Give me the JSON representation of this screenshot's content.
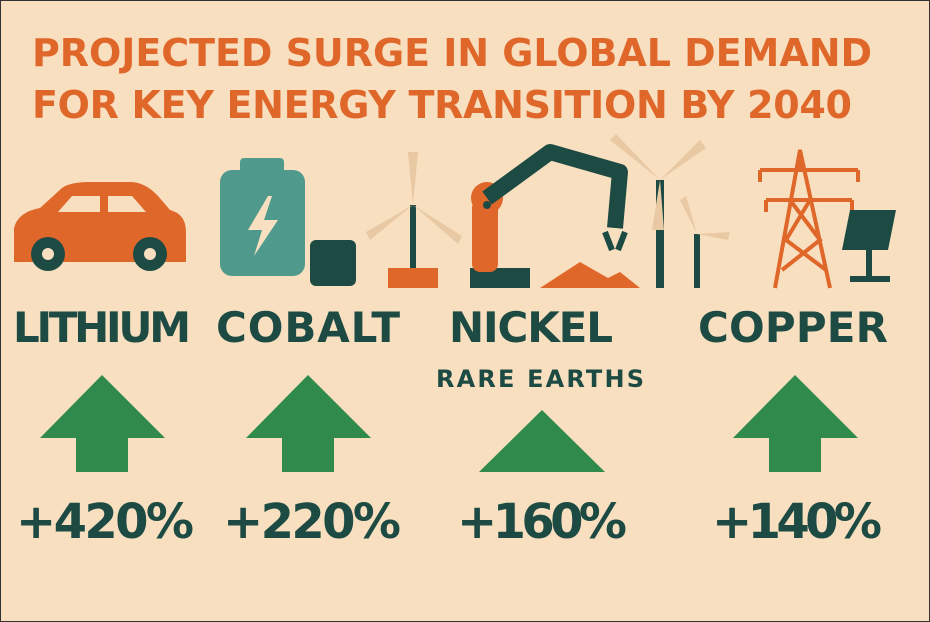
{
  "title": [
    "PROJECTED SURGE IN GLOBAL DEMAND",
    "FOR KEY ENERGY TRANSITION BY 2040"
  ],
  "items": [
    {
      "name": "LITHIUM",
      "change": "+420%"
    },
    {
      "name": "COBALT",
      "change": "+220%"
    },
    {
      "name": "NICKEL",
      "sublabel": "RARE EARTHS",
      "change": "+160%"
    },
    {
      "name": "COPPER",
      "change": "+140%"
    }
  ]
}
